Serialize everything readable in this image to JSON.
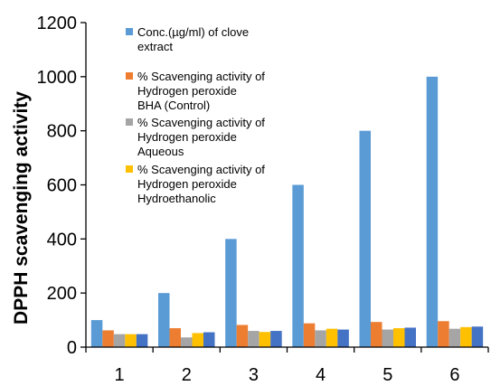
{
  "chart_data": {
    "type": "bar",
    "title": "",
    "xlabel": "",
    "ylabel": "DPPH scavenging activity",
    "ylim": [
      0,
      1200
    ],
    "yticks": [
      0,
      200,
      400,
      600,
      800,
      1000,
      1200
    ],
    "categories": [
      "1",
      "2",
      "3",
      "4",
      "5",
      "6"
    ],
    "grid": false,
    "legend_position": "top-left, overlapping plot",
    "series": [
      {
        "name": "Conc.(µg/ml) of clove extract",
        "legend_lines": [
          "Conc.(µg/ml) of clove",
          "extract"
        ],
        "color": "#5B9BD5",
        "values": [
          100,
          200,
          400,
          600,
          800,
          1000
        ]
      },
      {
        "name": "% Scavenging activity of Hydrogen peroxide BHA (Control)",
        "legend_lines": [
          "% Scavenging activity of",
          "Hydrogen peroxide",
          "BHA (Control)"
        ],
        "color": "#ED7D31",
        "values": [
          62,
          70,
          82,
          88,
          93,
          96
        ]
      },
      {
        "name": "% Scavenging activity of Hydrogen peroxide Aqueous",
        "legend_lines": [
          "% Scavenging activity of",
          "Hydrogen peroxide",
          "Aqueous"
        ],
        "color": "#A5A5A5",
        "values": [
          48,
          36,
          60,
          62,
          65,
          68
        ]
      },
      {
        "name": "% Scavenging activity of Hydrogen peroxide Hydroethanolic",
        "legend_lines": [
          "% Scavenging activity of",
          "Hydrogen peroxide",
          "Hydroethanolic"
        ],
        "color": "#FFC000",
        "values": [
          48,
          52,
          56,
          68,
          70,
          74
        ]
      },
      {
        "name": "",
        "legend_lines": [],
        "color": "#4472C4",
        "values": [
          48,
          55,
          60,
          65,
          72,
          76
        ]
      }
    ]
  }
}
